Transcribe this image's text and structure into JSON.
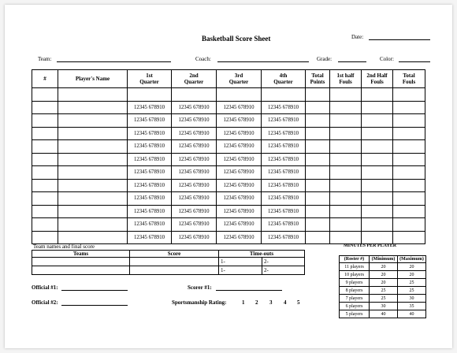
{
  "header": {
    "title": "Basketball Score Sheet",
    "date_label": "Date:",
    "team_label": "Team:",
    "coach_label": "Coach:",
    "grade_label": "Grade:",
    "color_label": "Color:"
  },
  "score_table": {
    "headers": {
      "num": "#",
      "player": "Player's Name",
      "q1": [
        "1st",
        "Quarter"
      ],
      "q2": [
        "2nd",
        "Quarter"
      ],
      "q3": [
        "3rd",
        "Quarter"
      ],
      "q4": [
        "4th",
        "Quarter"
      ],
      "total_points": [
        "Total",
        "Points"
      ],
      "first_half_fouls": [
        "1st half",
        "Fouls"
      ],
      "second_half_fouls": [
        "2nd Half",
        "Fouls"
      ],
      "total_fouls": [
        "Total",
        "Fouls"
      ]
    },
    "tally": "12345 678910"
  },
  "team_section": {
    "caption": "Team names and final score",
    "headers": {
      "teams": "Teams",
      "score": "Score",
      "timeouts": "Time-outs"
    },
    "timeout_marks": [
      "1-",
      "2-"
    ]
  },
  "officials": {
    "official1_label": "Official #1:",
    "official2_label": "Official #2:",
    "scorer_label": "Scorer #1:"
  },
  "sportsmanship": {
    "label": "Sportsmanship Rating:",
    "ratings": [
      "1",
      "2",
      "3",
      "4",
      "5"
    ]
  },
  "minutes": {
    "title": "MINUTES PER PLAYER",
    "headers": [
      "(Roster #)",
      "(Minimum)",
      "(Maximum)"
    ],
    "rows": [
      [
        "11 players",
        "20",
        "20"
      ],
      [
        "10 players",
        "20",
        "20"
      ],
      [
        "9 players",
        "20",
        "25"
      ],
      [
        "8 players",
        "25",
        "25"
      ],
      [
        "7 players",
        "25",
        "30"
      ],
      [
        "6 players",
        "30",
        "35"
      ],
      [
        "5 players",
        "40",
        "40"
      ]
    ]
  }
}
